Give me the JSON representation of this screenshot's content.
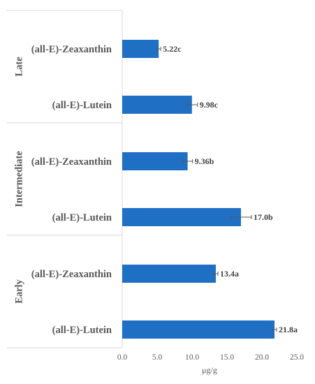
{
  "chart_data": {
    "type": "bar",
    "orientation": "horizontal",
    "xlabel": "μg/g",
    "xlim": [
      0,
      25
    ],
    "xticks": [
      "0.0",
      "5.0",
      "10.0",
      "15.0",
      "20.0",
      "25.0"
    ],
    "grid": false,
    "bar_color": "#1f6fc5",
    "groups": [
      {
        "name": "Late",
        "bars": [
          {
            "label": "(all-E)-Zeaxanthin",
            "value": 5.22,
            "error": 0.3,
            "data_label": "5.22c"
          },
          {
            "label": "(all-E)-Lutein",
            "value": 9.98,
            "error": 0.8,
            "data_label": "9.98c"
          }
        ]
      },
      {
        "name": "Intermediate",
        "bars": [
          {
            "label": "(all-E)-Zeaxanthin",
            "value": 9.36,
            "error": 0.7,
            "data_label": "9.36b"
          },
          {
            "label": "(all-E)-Lutein",
            "value": 17.0,
            "error": 1.5,
            "data_label": "17.0b"
          }
        ]
      },
      {
        "name": "Early",
        "bars": [
          {
            "label": "(all-E)-Zeaxanthin",
            "value": 13.4,
            "error": 0.3,
            "data_label": "13.4a"
          },
          {
            "label": "(all-E)-Lutein",
            "value": 21.8,
            "error": 0.3,
            "data_label": "21.8a"
          }
        ]
      }
    ]
  }
}
